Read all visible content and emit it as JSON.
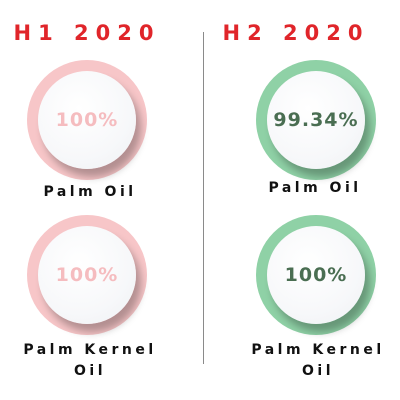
{
  "periods": [
    {
      "title": "H1 2020",
      "items": [
        {
          "value": "100%",
          "label": "Palm Oil",
          "ring_color": "#f7c6c8",
          "text_color": "#f5bcbf"
        },
        {
          "value": "100%",
          "label": "Palm Kernel Oil",
          "ring_color": "#f7c6c8",
          "text_color": "#f5bcbf"
        }
      ]
    },
    {
      "title": "H2 2020",
      "items": [
        {
          "value": "99.34%",
          "label": "Palm Oil",
          "ring_color": "#8fd1a6",
          "text_color": "#4a6e52"
        },
        {
          "value": "100%",
          "label": "Palm Kernel Oil",
          "ring_color": "#8fd1a6",
          "text_color": "#4a6e52"
        }
      ]
    }
  ],
  "accent_color": "#e0252a"
}
